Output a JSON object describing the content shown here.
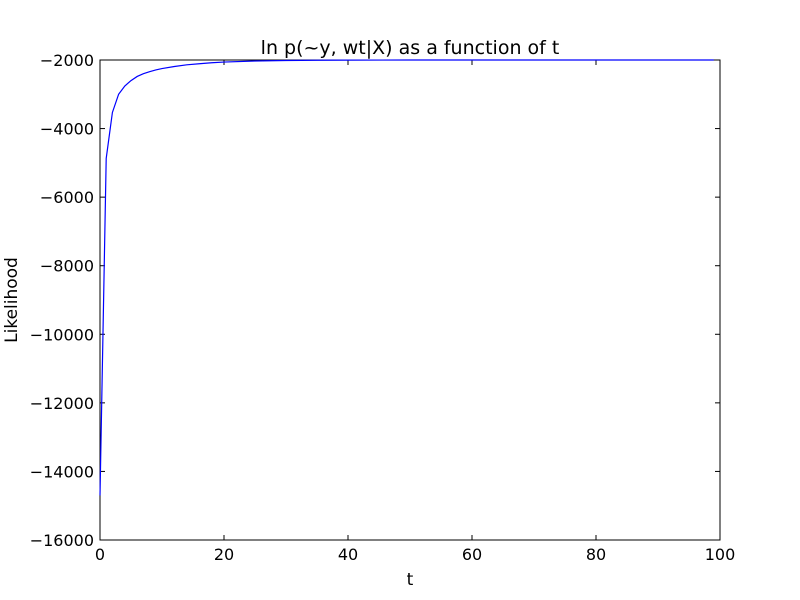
{
  "chart_data": {
    "type": "line",
    "title": "ln p(~y, wt|X) as a function of t",
    "xlabel": "t",
    "ylabel": "Likelihood",
    "xlim": [
      0,
      100
    ],
    "ylim": [
      -16000,
      -2000
    ],
    "xticks": [
      0,
      20,
      40,
      60,
      80,
      100
    ],
    "yticks": [
      -16000,
      -14000,
      -12000,
      -10000,
      -8000,
      -6000,
      -4000,
      -2000
    ],
    "xtick_labels": [
      "0",
      "20",
      "40",
      "60",
      "80",
      "100"
    ],
    "ytick_labels": [
      "−16000",
      "−14000",
      "−12000",
      "−10000",
      "−8000",
      "−6000",
      "−4000",
      "−2000"
    ],
    "grid": false,
    "color": "#0000ff",
    "series": [
      {
        "x": [
          0,
          1,
          2,
          3,
          4,
          5,
          6,
          7,
          8,
          9,
          10,
          12,
          14,
          16,
          18,
          20,
          25,
          30,
          35,
          40,
          50,
          60,
          70,
          80,
          90,
          99
        ],
        "values": [
          -14700,
          -4870,
          -3530,
          -3000,
          -2760,
          -2600,
          -2480,
          -2400,
          -2340,
          -2290,
          -2250,
          -2190,
          -2140,
          -2110,
          -2080,
          -2060,
          -2030,
          -2015,
          -2008,
          -2004,
          -2001,
          -2000,
          -2000,
          -2000,
          -2000,
          -2000
        ]
      }
    ]
  }
}
